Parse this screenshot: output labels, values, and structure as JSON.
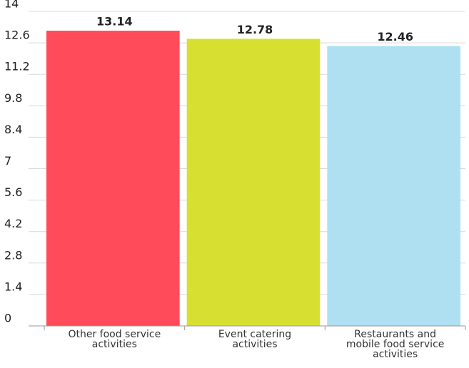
{
  "chart_data": {
    "type": "bar",
    "categories": [
      "Other food service activities",
      "Event catering activities",
      "Restaurants and mobile food service activities"
    ],
    "values": [
      13.14,
      12.78,
      12.46
    ],
    "colors": [
      "#ff4b5a",
      "#d7e031",
      "#aee0f2"
    ],
    "ylim": [
      0,
      14
    ],
    "yticks": [
      0,
      1.4,
      2.8,
      4.2,
      5.6,
      7,
      8.4,
      9.8,
      11.2,
      12.6,
      14
    ],
    "grid": true
  }
}
